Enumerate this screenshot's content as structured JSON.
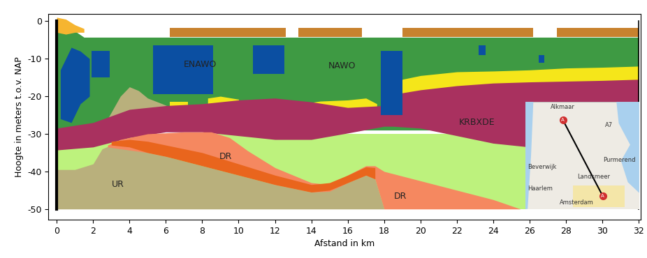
{
  "chart_data": {
    "type": "cross_section",
    "x_label": "Afstand in km",
    "y_label": "Hoogte in meters t.o.v. NAP",
    "xlim": [
      -0.45,
      32.1
    ],
    "ylim": [
      -52.8,
      1.9
    ],
    "xticks": [
      0,
      2,
      4,
      6,
      8,
      10,
      12,
      14,
      16,
      18,
      20,
      22,
      24,
      26,
      28,
      30,
      32
    ],
    "yticks": [
      -50,
      -40,
      -30,
      -20,
      -10,
      0
    ],
    "grid": false,
    "series": [
      {
        "color": "#3e9a43",
        "x": [
          0,
          0.5,
          1.5,
          32
        ],
        "top": [
          0,
          -1,
          -4.3,
          -4.3
        ],
        "bottom": [
          -29,
          -29,
          -29,
          -29
        ]
      },
      {
        "color": "#b9b07c",
        "x": [
          2.8,
          3.5,
          4,
          4.5,
          5,
          5.8,
          6.3
        ],
        "top": [
          -26,
          -20,
          -17.5,
          -18.5,
          -20.5,
          -22,
          -23
        ],
        "bottom": [
          -28,
          -28,
          -28,
          -28,
          -28,
          -28,
          -28
        ]
      },
      {
        "color": "#f5e61a",
        "x": [
          18.2,
          19,
          20,
          22,
          24,
          26,
          28,
          30,
          32
        ],
        "top": [
          -21,
          -15.5,
          -14.5,
          -13.5,
          -13.3,
          -13,
          -12.5,
          -12.3,
          -12
        ],
        "bottom": [
          -24,
          -20,
          -20,
          -19,
          -18,
          -18,
          -18,
          -18,
          -17
        ]
      },
      {
        "color": "#f5e61a",
        "x": [
          13.5,
          14.5,
          16,
          17,
          17.6
        ],
        "top": [
          -22,
          -21.3,
          -21,
          -20.5,
          -22
        ],
        "bottom": [
          -24,
          -25,
          -25,
          -26,
          -24
        ]
      },
      {
        "color": "#f5e61a",
        "x": [
          8.3,
          9,
          10
        ],
        "top": [
          -20.5,
          -20,
          -20.8
        ],
        "bottom": [
          -23,
          -23,
          -23
        ]
      },
      {
        "color": "#f5e61a",
        "x": [
          6.2,
          7.2
        ],
        "top": [
          -21.5,
          -21.5
        ],
        "bottom": [
          -23,
          -23
        ]
      },
      {
        "color": "#bdf27d",
        "x": [
          0,
          26
        ],
        "top": [
          -30,
          -30
        ],
        "bottom": [
          -50,
          -50
        ]
      },
      {
        "color": "#a9315f",
        "x": [
          0,
          2,
          4,
          6,
          8,
          10,
          12,
          14,
          16,
          18,
          18.5,
          20,
          22,
          24,
          26,
          28,
          30,
          32
        ],
        "top": [
          -28.5,
          -27,
          -23.5,
          -22.5,
          -22,
          -21,
          -20.5,
          -21.5,
          -23,
          -22.5,
          -19.5,
          -18.3,
          -17.2,
          -16.5,
          -16.2,
          -16,
          -15.8,
          -15.5
        ],
        "bottom": [
          -34.3,
          -33.5,
          -31,
          -29.5,
          -29.5,
          -30.5,
          -31.5,
          -31.5,
          -29.8,
          -28,
          -28,
          -28.5,
          -30.5,
          -32.5,
          -33.5,
          -32,
          -30,
          -28
        ]
      },
      {
        "color": "#b9b07c",
        "x": [
          0,
          1,
          2,
          2.5,
          3,
          4,
          5,
          6,
          8,
          10,
          12,
          14,
          15,
          16,
          17,
          17.5,
          18
        ],
        "top": [
          -39.5,
          -39.5,
          -38,
          -34,
          -33,
          -33.5,
          -35,
          -36,
          -38.5,
          -41,
          -43.5,
          -45.5,
          -45,
          -43,
          -41,
          -42,
          -50
        ],
        "bottom": [
          -50,
          -50,
          -50,
          -50,
          -50,
          -50,
          -50,
          -50,
          -50,
          -50,
          -50,
          -50,
          -50,
          -50,
          -50,
          -50,
          -50
        ]
      },
      {
        "color": "#f58860",
        "x": [
          2.8,
          3.5,
          5,
          7,
          8.5,
          9.5,
          10.5,
          12,
          14,
          15,
          16,
          17,
          17.5,
          18,
          20,
          22,
          24,
          25.5
        ],
        "top": [
          -33,
          -31.5,
          -30,
          -29.5,
          -29.5,
          -31,
          -34.5,
          -39,
          -43,
          -43.5,
          -41,
          -38.5,
          -38.5,
          -40,
          -42.5,
          -45,
          -47.5,
          -50
        ],
        "bottom": [
          -33.5,
          -34,
          -35,
          -37,
          -38.7,
          -40,
          -41.5,
          -43.5,
          -45.5,
          -45.3,
          -43,
          -41,
          -42,
          -50,
          -50,
          -50,
          -50,
          -50
        ]
      },
      {
        "color": "#e9651d",
        "x": [
          3,
          4,
          5,
          6,
          8,
          10,
          12,
          14,
          15,
          16,
          17,
          17.5
        ],
        "top": [
          -32,
          -31.5,
          -32,
          -33,
          -35,
          -38,
          -41,
          -43.5,
          -43,
          -41,
          -38.8,
          -39
        ],
        "bottom": [
          -33,
          -33.5,
          -35,
          -36,
          -38.5,
          -41,
          -43.5,
          -45.5,
          -45,
          -43,
          -41,
          -42
        ]
      },
      {
        "color": "#c8822e",
        "x": [
          6.2,
          12.6
        ],
        "top": [
          -1.8,
          -1.8
        ],
        "bottom": [
          -4.3,
          -4.3
        ]
      },
      {
        "color": "#c8822e",
        "x": [
          13.3,
          16.8
        ],
        "top": [
          -1.8,
          -1.8
        ],
        "bottom": [
          -4.3,
          -4.3
        ]
      },
      {
        "color": "#c8822e",
        "x": [
          19,
          26.2
        ],
        "top": [
          -1.8,
          -1.8
        ],
        "bottom": [
          -4.3,
          -4.3
        ]
      },
      {
        "color": "#c8822e",
        "x": [
          27.5,
          32
        ],
        "top": [
          -1.8,
          -1.8
        ],
        "bottom": [
          -4.3,
          -4.3
        ]
      },
      {
        "color": "#0b4fa2",
        "x": [
          0.2,
          0.8,
          1.3,
          1.8
        ],
        "top": [
          -13,
          -7,
          -8,
          -10
        ],
        "bottom": [
          -26,
          -27,
          -22,
          -20
        ]
      },
      {
        "color": "#0b4fa2",
        "x": [
          1.9,
          2.9
        ],
        "top": [
          -8,
          -8
        ],
        "bottom": [
          -15,
          -15
        ]
      },
      {
        "color": "#0b4fa2",
        "x": [
          5.3,
          8.6
        ],
        "top": [
          -6.5,
          -6.5
        ],
        "bottom": [
          -19.5,
          -19.5
        ]
      },
      {
        "color": "#0b4fa2",
        "x": [
          10.8,
          12.5
        ],
        "top": [
          -6.5,
          -6.5
        ],
        "bottom": [
          -14,
          -14
        ]
      },
      {
        "color": "#0b4fa2",
        "x": [
          17.8,
          19
        ],
        "top": [
          -8,
          -8
        ],
        "bottom": [
          -25,
          -25
        ]
      },
      {
        "color": "#0b4fa2",
        "x": [
          23.2,
          23.6
        ],
        "top": [
          -6.5,
          -6.5
        ],
        "bottom": [
          -9,
          -9
        ]
      },
      {
        "color": "#0b4fa2",
        "x": [
          26.5,
          26.8
        ],
        "top": [
          -9,
          -9
        ],
        "bottom": [
          -11,
          -11
        ]
      },
      {
        "color": "#f6b530",
        "x": [
          0,
          0.5,
          1,
          1.5
        ],
        "top": [
          1,
          0.5,
          -1,
          -2
        ],
        "bottom": [
          -3,
          -3.5,
          -3,
          -3
        ]
      }
    ],
    "annotations": [
      {
        "text": "ENAWO",
        "x": 7.9,
        "y": -11.5
      },
      {
        "text": "NAWO",
        "x": 15.7,
        "y": -12
      },
      {
        "text": "KRBXDE",
        "x": 23.1,
        "y": -26.9
      },
      {
        "text": "DR",
        "x": 9.3,
        "y": -36.1
      },
      {
        "text": "DR",
        "x": 18.9,
        "y": -46.7
      },
      {
        "text": "UR",
        "x": 3.35,
        "y": -43.5
      }
    ],
    "inset_map": {
      "places": [
        "Alkmaar",
        "A7",
        "Beverwijk",
        "Purmerend",
        "Landsmeer",
        "Haarlem",
        "Amsterdam"
      ],
      "route_markers": [
        "A",
        "A"
      ]
    }
  }
}
